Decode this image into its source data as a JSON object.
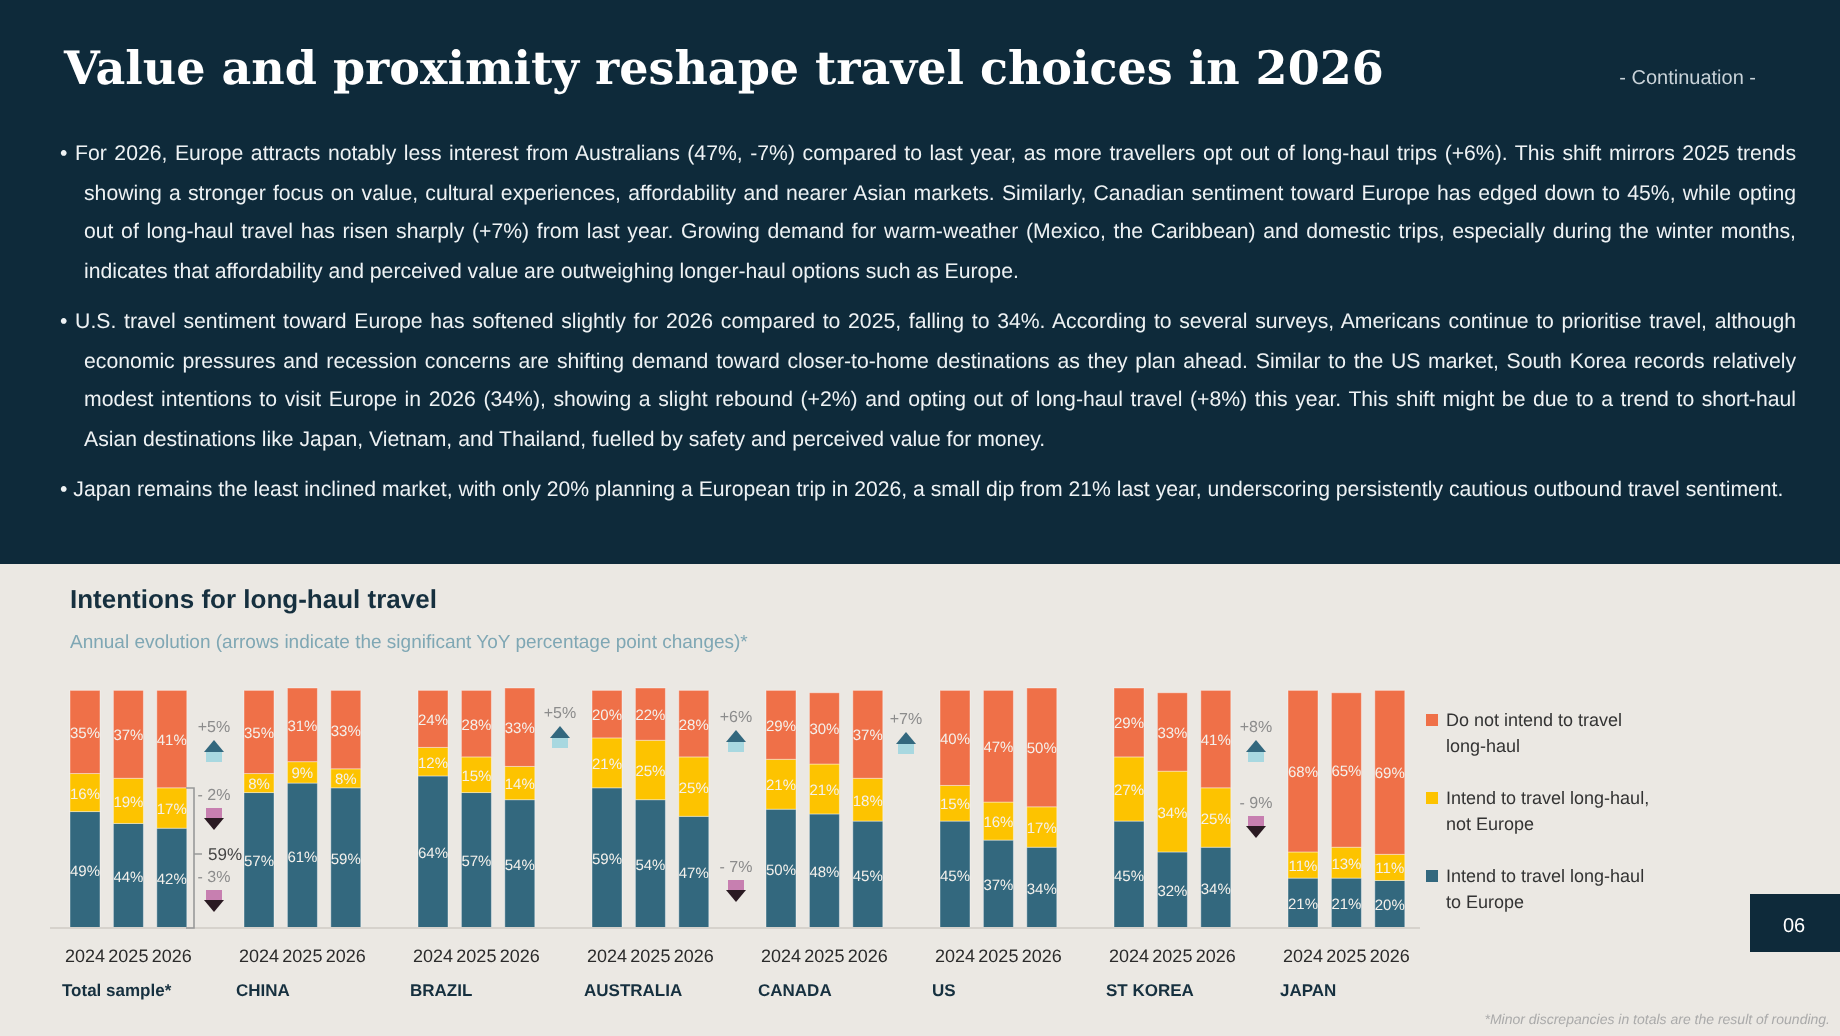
{
  "chart_data": {
    "type": "bar",
    "stacked": true,
    "legend": "right",
    "title": "Intentions for long-haul travel",
    "subtitle": "Annual evolution (arrows indicate the significant YoY percentage point changes)*",
    "categories": [
      "2024",
      "2025",
      "2026",
      "2024",
      "2025",
      "2026",
      "2024",
      "2025",
      "2026",
      "2024",
      "2025",
      "2026",
      "2024",
      "2025",
      "2026",
      "2024",
      "2025",
      "2026",
      "2024",
      "2025",
      "2026",
      "2024",
      "2025",
      "2026"
    ],
    "series": [
      {
        "name": "Intend to travel long-haul to Europe",
        "color": "#33687e",
        "values": [
          49,
          44,
          42,
          57,
          61,
          59,
          64,
          57,
          54,
          59,
          54,
          47,
          50,
          48,
          45,
          45,
          37,
          34,
          45,
          32,
          34,
          21,
          21,
          20
        ],
        "value_labels": [
          "49%",
          "44%",
          "42%",
          "57%",
          "61%",
          "59%",
          "64%",
          "57%",
          "54%",
          "59%",
          "54%",
          "47%",
          "50%",
          "48%",
          "45%",
          "45%",
          "37%",
          "34%",
          "45%",
          "32%",
          "34%",
          "21%",
          "21%",
          "20%"
        ]
      },
      {
        "name": "Intend to travel long-haul, not Europe",
        "color": "#fdc300",
        "values": [
          16,
          19,
          17,
          8,
          9,
          8,
          12,
          15,
          14,
          21,
          25,
          25,
          21,
          21,
          18,
          15,
          16,
          17,
          27,
          34,
          25,
          11,
          13,
          11
        ],
        "value_labels": [
          "16%",
          "19%",
          "17%",
          "8%",
          "9%",
          "8%",
          "12%",
          "15%",
          "14%",
          "21%",
          "25%",
          "25%",
          "21%",
          "21%",
          "18%",
          "15%",
          "16%",
          "17%",
          "27%",
          "34%",
          "25%",
          "11%",
          "13%",
          "11%"
        ]
      },
      {
        "name": "Do not intend to travel long-haul",
        "color": "#ef7048",
        "values": [
          35,
          37,
          41,
          35,
          31,
          33,
          24,
          28,
          33,
          20,
          22,
          28,
          29,
          30,
          37,
          40,
          47,
          50,
          29,
          33,
          41,
          68,
          65,
          69
        ],
        "value_labels": [
          "35%",
          "37%",
          "41%",
          "35%",
          "31%",
          "33%",
          "24%",
          "28%",
          "33%",
          "20%",
          "22%",
          "28%",
          "29%",
          "30%",
          "37%",
          "40%",
          "47%",
          "50%",
          "29%",
          "33%",
          "41%",
          "68%",
          "65%",
          "69%"
        ]
      }
    ],
    "annotations": [
      "Value and proximity reshape travel choices in 2026",
      "- Continuation -",
      "• For 2026, Europe attracts notably less interest from Australians (47%, -7%) compared to last year, as more travellers opt out of long-haul trips (+6%). This shift mirrors 2025 trends showing a stronger focus on value, cultural experiences, affordability and nearer Asian markets. Similarly, Canadian sentiment toward Europe has edged down to 45%, while opting out of long-haul travel has risen sharply (+7%) from last year. Growing demand for warm-weather (Mexico, the Caribbean) and domestic trips, especially during the winter months, indicates that affordability and perceived value are outweighing longer-haul options such as Europe.",
      "• U.S. travel sentiment toward Europe has softened slightly for 2026 compared to 2025, falling to 34%. According to several surveys, Americans continue to prioritise travel, although economic pressures and recession concerns are shifting demand toward closer-to-home destinations as they plan ahead. Similar to the US market, South Korea records relatively modest intentions to visit Europe in 2026 (34%), showing a slight rebound (+2%) and opting out of long-haul travel (+8%) this year. This shift might be due to a trend to short-haul Asian destinations like Japan, Vietnam, and Thailand, fuelled by safety and perceived value for money.",
      "• Japan remains the least inclined market, with only 20% planning a European trip in 2026, a small dip from 21% last year, underscoring persistently cautious outbound travel sentiment.",
      "Total sample*",
      "CHINA",
      "BRAZIL",
      "AUSTRALIA",
      "CANADA",
      "US",
      "ST KOREA",
      "JAPAN",
      "+5%",
      "- 2%",
      "59%",
      "- 3%",
      "+5%",
      "+6%",
      "- 7%",
      "+7%",
      "+8%",
      "- 9%",
      "06",
      "*Minor discrepancies in totals are the result of rounding."
    ]
  }
}
